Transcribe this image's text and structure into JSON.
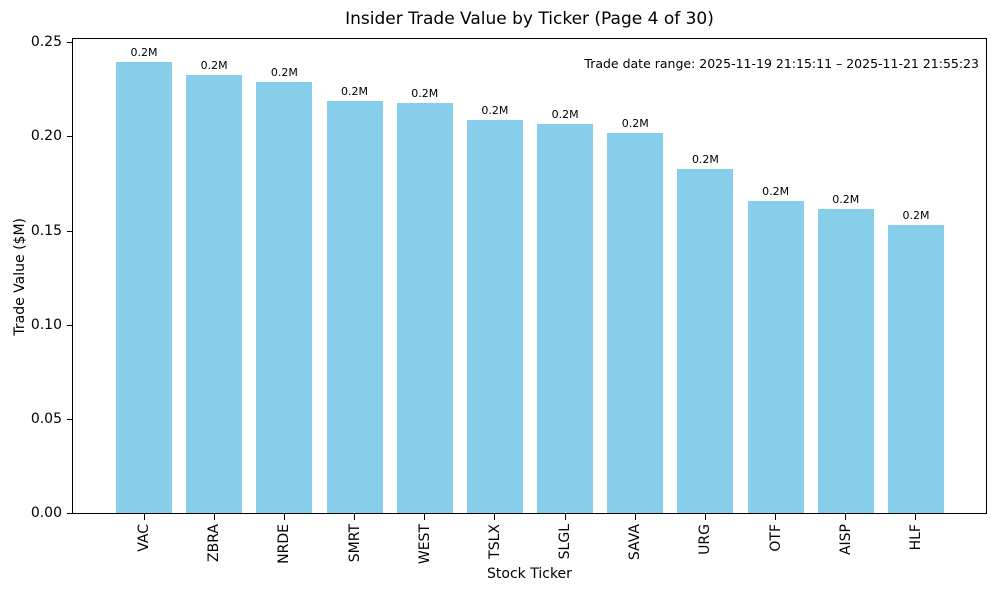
{
  "chart_data": {
    "type": "bar",
    "title": "Insider Trade Value by Ticker (Page 4 of 30)",
    "xlabel": "Stock Ticker",
    "ylabel": "Trade Value ($M)",
    "categories": [
      "VAC",
      "ZBRA",
      "NRDE",
      "SMRT",
      "WEST",
      "TSLX",
      "SLGL",
      "SAVA",
      "URG",
      "OTF",
      "AISP",
      "HLF"
    ],
    "values": [
      0.24,
      0.233,
      0.229,
      0.219,
      0.218,
      0.209,
      0.207,
      0.202,
      0.183,
      0.166,
      0.162,
      0.153
    ],
    "bar_value_labels": [
      "0.2M",
      "0.2M",
      "0.2M",
      "0.2M",
      "0.2M",
      "0.2M",
      "0.2M",
      "0.2M",
      "0.2M",
      "0.2M",
      "0.2M",
      "0.2M"
    ],
    "y_ticks": [
      "0.00",
      "0.05",
      "0.10",
      "0.15",
      "0.20",
      "0.25"
    ],
    "ylim": [
      0,
      0.2523
    ],
    "annotation": "Trade date range: 2025-11-19 21:15:11 – 2025-11-21 21:55:23",
    "bar_color": "#87CEEB",
    "axis_color": "#000000",
    "text_color": "#000000",
    "grid": false,
    "legend": null
  }
}
